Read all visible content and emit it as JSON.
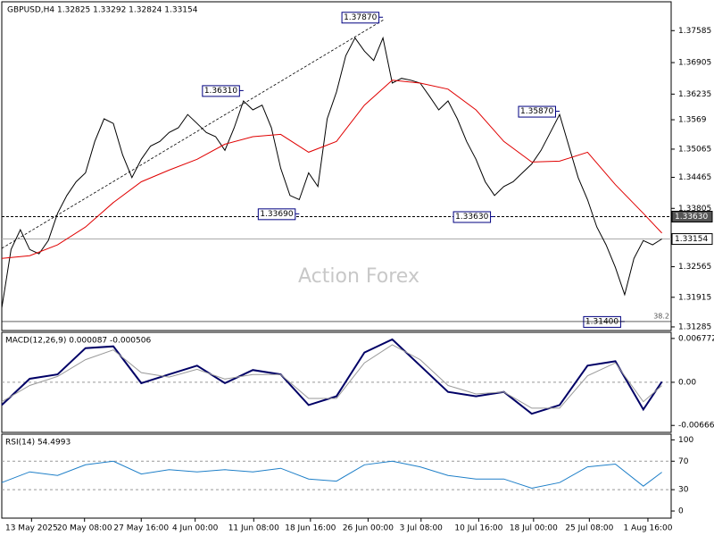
{
  "chart_data": [
    {
      "type": "line",
      "title": "GBPUSD,H4 1.32825 1.33292 1.32824 1.33154",
      "watermark": "Action Forex",
      "ylim": [
        1.31208,
        1.38198
      ],
      "xlim": [
        0,
        72
      ],
      "yticks": [
        1.37585,
        1.36905,
        1.36235,
        1.3569,
        1.35065,
        1.34465,
        1.33805,
        1.32565,
        1.31915,
        1.31285
      ],
      "series": [
        {
          "name": "Close",
          "color": "#000000",
          "values": [
            1.31687,
            1.32932,
            1.3335,
            1.3293,
            1.3284,
            1.3312,
            1.337,
            1.3408,
            1.3437,
            1.3456,
            1.3523,
            1.3571,
            1.3561,
            1.3494,
            1.3446,
            1.3485,
            1.3513,
            1.3523,
            1.3542,
            1.3552,
            1.358,
            1.3561,
            1.3542,
            1.3533,
            1.3504,
            1.3552,
            1.3609,
            1.359,
            1.36,
            1.3552,
            1.3466,
            1.3408,
            1.3399,
            1.3456,
            1.3427,
            1.3571,
            1.3628,
            1.3705,
            1.3743,
            1.3715,
            1.3695,
            1.3743,
            1.3647,
            1.3657,
            1.3653,
            1.3647,
            1.3619,
            1.359,
            1.3609,
            1.3571,
            1.3523,
            1.3485,
            1.3437,
            1.3408,
            1.3427,
            1.3437,
            1.3456,
            1.3475,
            1.3504,
            1.3542,
            1.358,
            1.3513,
            1.3446,
            1.3399,
            1.3341,
            1.3303,
            1.3255,
            1.3197,
            1.3274,
            1.3312,
            1.3303,
            1.33154
          ]
        },
        {
          "name": "MA",
          "color": "#e00000",
          "x": [
            0,
            3,
            6,
            9,
            12,
            15,
            18,
            21,
            24,
            27,
            30,
            33,
            36,
            39,
            42,
            45,
            48,
            51,
            54,
            57,
            60,
            63,
            66,
            69,
            71
          ],
          "values": [
            1.3274,
            1.328,
            1.3303,
            1.3341,
            1.3393,
            1.3437,
            1.3462,
            1.3485,
            1.3517,
            1.3533,
            1.3538,
            1.35,
            1.3523,
            1.36,
            1.3653,
            1.3647,
            1.3634,
            1.359,
            1.3523,
            1.3479,
            1.3481,
            1.35,
            1.3431,
            1.337,
            1.3328
          ]
        }
      ],
      "annotations": [
        {
          "x": 41,
          "value": 1.3787,
          "label": "1.37870"
        },
        {
          "x": 26,
          "value": 1.3631,
          "label": "1.36310"
        },
        {
          "x": 32,
          "value": 1.3369,
          "label": "1.33690"
        },
        {
          "x": 53,
          "value": 1.3363,
          "label": "1.33630"
        },
        {
          "x": 60,
          "value": 1.3587,
          "label": "1.35870"
        },
        {
          "x": 67,
          "value": 1.314,
          "label": "1.31400"
        }
      ],
      "fib_label": "38.2",
      "hlines": [
        {
          "value": 1.3363,
          "label": "1.33630",
          "style": "dashed"
        },
        {
          "value": 1.33154,
          "label": "1.33154",
          "style": "solid"
        }
      ]
    },
    {
      "type": "line",
      "title": "MACD(12,26,9) 0.000087 -0.000506",
      "ylim": [
        -0.00774,
        0.00772
      ],
      "xlim": [
        0,
        72
      ],
      "yticks": [
        0.006772,
        {
          "value": 0,
          "label": "0.00"
        },
        -0.006667
      ],
      "series": [
        {
          "name": "MACD",
          "color": "#000066",
          "x": [
            0,
            3,
            6,
            9,
            12,
            15,
            18,
            21,
            24,
            27,
            30,
            33,
            36,
            39,
            42,
            45,
            48,
            51,
            54,
            57,
            60,
            63,
            66,
            69,
            71
          ],
          "values": [
            -0.00352,
            0.00054,
            0.00122,
            0.00528,
            0.00555,
            -0.00014,
            0.00122,
            0.00257,
            -0.00014,
            0.0019,
            0.00122,
            -0.00352,
            -0.00217,
            0.0046,
            0.00663,
            0.00257,
            -0.00149,
            -0.00217,
            -0.00149,
            -0.00487,
            -0.00352,
            0.00257,
            0.00325,
            -0.0042,
            8.7e-05
          ]
        },
        {
          "name": "Signal",
          "color": "#999999",
          "x": [
            0,
            3,
            6,
            9,
            12,
            15,
            18,
            21,
            24,
            27,
            30,
            33,
            36,
            39,
            42,
            45,
            48,
            51,
            54,
            57,
            60,
            63,
            66,
            69,
            71
          ],
          "values": [
            -0.003,
            -0.0005,
            0.0009,
            0.0035,
            0.005,
            0.0015,
            0.0008,
            0.002,
            0.0005,
            0.0012,
            0.0012,
            -0.0025,
            -0.0025,
            0.003,
            0.0058,
            0.0035,
            -0.0005,
            -0.0018,
            -0.0015,
            -0.004,
            -0.004,
            0.001,
            0.003,
            -0.003,
            -0.000506
          ]
        }
      ]
    },
    {
      "type": "line",
      "title": "RSI(14) 54.4993",
      "ylim": [
        -10,
        108
      ],
      "xlim": [
        0,
        72
      ],
      "yticks": [
        100,
        70,
        30,
        0
      ],
      "dashed_levels": [
        70,
        30
      ],
      "xticks": [
        {
          "value": 3.2,
          "label": "13 May 2025"
        },
        {
          "value": 8.9,
          "label": "20 May 08:00"
        },
        {
          "value": 15,
          "label": "27 May 16:00"
        },
        {
          "value": 20.8,
          "label": "4 Jun 00:00"
        },
        {
          "value": 27.1,
          "label": "11 Jun 08:00"
        },
        {
          "value": 33.2,
          "label": "18 Jun 16:00"
        },
        {
          "value": 39.4,
          "label": "26 Jun 00:00"
        },
        {
          "value": 45.1,
          "label": "3 Jul 08:00"
        },
        {
          "value": 51.3,
          "label": "10 Jul 16:00"
        },
        {
          "value": 57.2,
          "label": "18 Jul 00:00"
        },
        {
          "value": 63.2,
          "label": "25 Jul 08:00"
        },
        {
          "value": 69.5,
          "label": "1 Aug 16:00"
        }
      ],
      "series": [
        {
          "name": "RSI",
          "color": "#1e7fc8",
          "x": [
            0,
            3,
            6,
            9,
            12,
            15,
            18,
            21,
            24,
            27,
            30,
            33,
            36,
            39,
            42,
            45,
            48,
            51,
            54,
            57,
            60,
            63,
            66,
            69,
            71
          ],
          "values": [
            40,
            55,
            50,
            65,
            70,
            52,
            58,
            55,
            58,
            55,
            60,
            45,
            42,
            65,
            70,
            62,
            50,
            45,
            45,
            32,
            40,
            62,
            66,
            35,
            54.4993
          ]
        }
      ]
    }
  ]
}
